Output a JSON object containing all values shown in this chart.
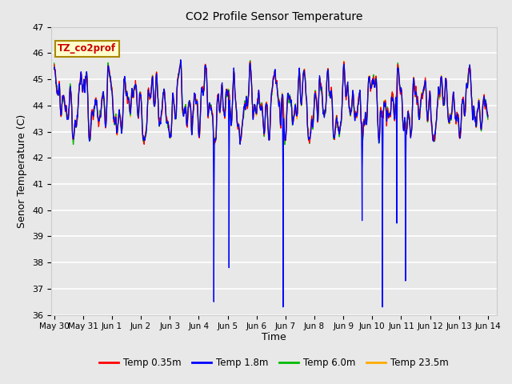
{
  "title": "CO2 Profile Sensor Temperature",
  "ylabel": "Senor Temperature (C)",
  "xlabel": "Time",
  "annotation": "TZ_co2prof",
  "ylim": [
    36.0,
    47.0
  ],
  "yticks": [
    36.0,
    37.0,
    38.0,
    39.0,
    40.0,
    41.0,
    42.0,
    43.0,
    44.0,
    45.0,
    46.0,
    47.0
  ],
  "xtick_labels": [
    "May 30",
    "May 31",
    "Jun 1",
    "Jun 2",
    "Jun 3",
    "Jun 4",
    "Jun 5",
    "Jun 6",
    "Jun 7",
    "Jun 8",
    "Jun 9",
    "Jun 10",
    "Jun 11",
    "Jun 12",
    "Jun 13",
    "Jun 14"
  ],
  "n_days": 15,
  "xlim_max": 15.3,
  "colors": {
    "red": "#ff0000",
    "blue": "#0000ff",
    "green": "#00bb00",
    "orange": "#ffaa00",
    "fig_bg": "#e8e8e8",
    "plot_bg": "#e8e8e8",
    "grid": "#ffffff"
  },
  "legend": [
    {
      "label": "Temp 0.35m",
      "color": "#ff0000"
    },
    {
      "label": "Temp 1.8m",
      "color": "#0000ff"
    },
    {
      "label": "Temp 6.0m",
      "color": "#00bb00"
    },
    {
      "label": "Temp 23.5m",
      "color": "#ffaa00"
    }
  ],
  "blue_dips": [
    {
      "day": 5.52,
      "depth": 36.5
    },
    {
      "day": 6.05,
      "depth": 37.8
    },
    {
      "day": 7.92,
      "depth": 36.3
    },
    {
      "day": 10.65,
      "depth": 39.6
    },
    {
      "day": 11.35,
      "depth": 36.3
    },
    {
      "day": 11.85,
      "depth": 39.5
    },
    {
      "day": 12.15,
      "depth": 37.3
    }
  ]
}
